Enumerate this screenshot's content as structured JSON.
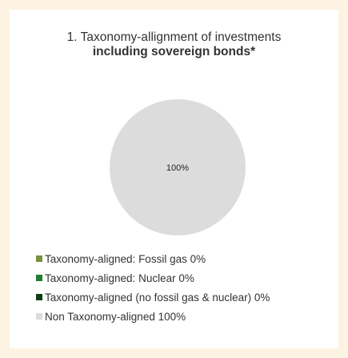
{
  "chart_data": {
    "type": "pie",
    "title_line1": "1. Taxonomy-allignment of investments",
    "title_line2": "including sovereign bonds*",
    "slices": [
      {
        "label": "Taxonomy-aligned: Fossil gas 0%",
        "value": 0,
        "color": "#76923c"
      },
      {
        "label": "Taxonomy-aligned: Nuclear 0%",
        "value": 0,
        "color": "#1e7d32"
      },
      {
        "label": "Taxonomy-aligned (no fossil gas & nuclear) 0%",
        "value": 0,
        "color": "#0f3d14"
      },
      {
        "label": "Non Taxonomy-aligned 100%",
        "value": 100,
        "color": "#dcdcdc"
      }
    ],
    "data_labels": [
      "100%"
    ],
    "legend_position": "bottom-left"
  }
}
